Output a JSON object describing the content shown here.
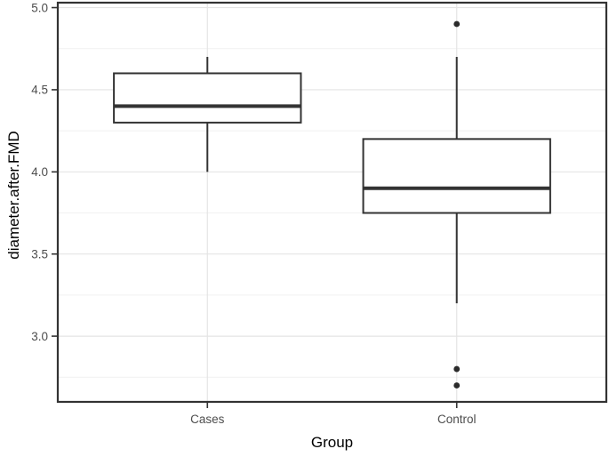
{
  "figure": {
    "background": "#ffffff",
    "panel_border_color": "#333333",
    "line_color": "#333333",
    "box_fill": "#ffffff",
    "grid_major_color": "#e4e4e4",
    "grid_minor_color": "#f1f1f1",
    "tick_mark_color": "#333333",
    "tick_label_color": "#4d4d4d",
    "axis_title_color": "#000000"
  },
  "chart_data": {
    "type": "boxplot",
    "title": "",
    "xlabel": "Group",
    "ylabel": "diameter.after.FMD",
    "categories": [
      "Cases",
      "Control"
    ],
    "series": [
      {
        "name": "Cases",
        "whisker_low": 4.0,
        "q1": 4.3,
        "median": 4.4,
        "q3": 4.6,
        "whisker_high": 4.7,
        "outliers": []
      },
      {
        "name": "Control",
        "whisker_low": 3.2,
        "q1": 3.75,
        "median": 3.9,
        "q3": 4.2,
        "whisker_high": 4.7,
        "outliers": [
          4.9,
          2.8,
          2.7
        ]
      }
    ],
    "y_axis": {
      "tick_values": [
        3.0,
        3.5,
        4.0,
        4.5,
        5.0
      ],
      "tick_labels": [
        "3.0",
        "3.5",
        "4.0",
        "4.5",
        "5.0"
      ],
      "minor_tick_values": [
        2.75,
        3.25,
        3.75,
        4.25,
        4.75
      ],
      "ylim": [
        2.6,
        5.03
      ]
    },
    "grid": {
      "horizontal_major": true,
      "horizontal_minor": true,
      "vertical_major_at_categories": true
    },
    "legend": null
  }
}
